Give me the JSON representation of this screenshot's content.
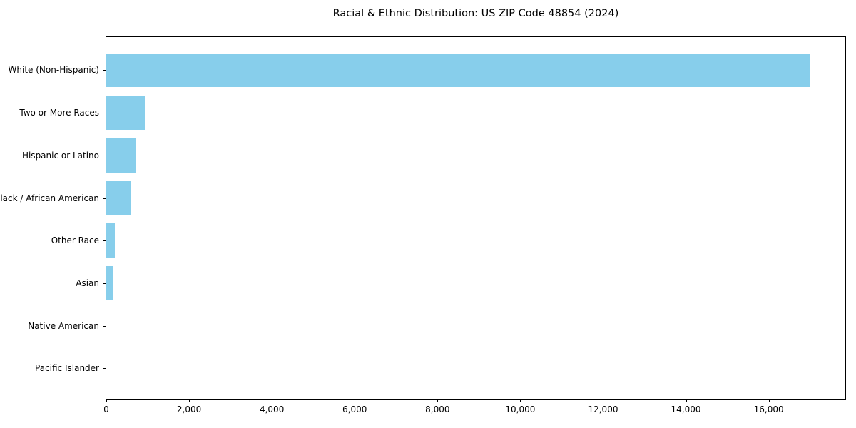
{
  "chart_data": {
    "type": "bar",
    "orientation": "horizontal",
    "title": "Racial & Ethnic Distribution: US ZIP Code 48854 (2024)",
    "categories": [
      "White (Non-Hispanic)",
      "Two or More Races",
      "Hispanic or Latino",
      "Black / African American",
      "Other Race",
      "Asian",
      "Native American",
      "Pacific Islander"
    ],
    "values": [
      17000,
      930,
      710,
      580,
      200,
      150,
      0,
      0
    ],
    "bar_color": "#87CEEB",
    "background_color": "#ffffff",
    "axis_color": "#000000",
    "xlabel": "",
    "ylabel": "",
    "xlim": [
      0,
      17850
    ],
    "x_ticks": [
      0,
      2000,
      4000,
      6000,
      8000,
      10000,
      12000,
      14000,
      16000
    ],
    "x_tick_labels": [
      "0",
      "2,000",
      "4,000",
      "6,000",
      "8,000",
      "10,000",
      "12,000",
      "14,000",
      "16,000"
    ],
    "grid": false,
    "legend": null
  }
}
